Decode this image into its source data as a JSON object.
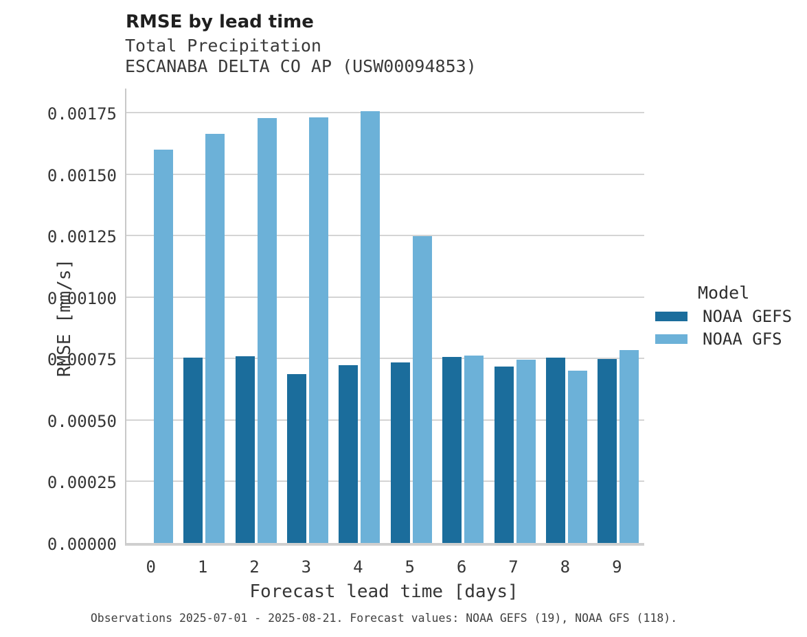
{
  "header": {
    "title": "RMSE by lead time",
    "subtitle_line1": "Total Precipitation",
    "subtitle_line2": "ESCANABA DELTA CO AP (USW00094853)"
  },
  "chart_data": {
    "type": "bar",
    "title": "RMSE by lead time",
    "subtitle": [
      "Total Precipitation",
      "ESCANABA DELTA CO AP (USW00094853)"
    ],
    "xlabel": "Forecast lead time [days]",
    "ylabel": "RMSE [mm/s]",
    "categories": [
      "0",
      "1",
      "2",
      "3",
      "4",
      "5",
      "6",
      "7",
      "8",
      "9"
    ],
    "series": [
      {
        "name": "NOAA GEFS",
        "color": "#1b6d9c",
        "values": [
          null,
          0.000755,
          0.00076,
          0.000687,
          0.000723,
          0.000734,
          0.000756,
          0.000717,
          0.000755,
          0.000748
        ]
      },
      {
        "name": "NOAA GFS",
        "color": "#6cb1d8",
        "values": [
          0.0016,
          0.001663,
          0.001728,
          0.001731,
          0.001755,
          0.001249,
          0.000762,
          0.000745,
          0.000702,
          0.000785
        ]
      }
    ],
    "ylim": [
      0,
      0.001848
    ],
    "y_ticks": [
      "0.00000",
      "0.00025",
      "0.00050",
      "0.00075",
      "0.00100",
      "0.00125",
      "0.00150",
      "0.00175"
    ],
    "grid": "horizontal",
    "legend_title": "Model",
    "legend_position": "right",
    "caption": "Observations 2025-07-01 - 2025-08-21. Forecast values: NOAA GEFS (19), NOAA GFS (118)."
  }
}
